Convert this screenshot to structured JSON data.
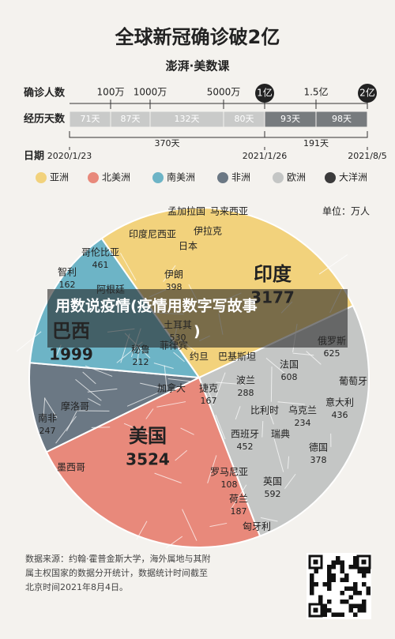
{
  "header": {
    "title": "全球新冠确诊破2亿",
    "brand": "澎湃·美数课"
  },
  "timeline": {
    "cases_label": "确诊人数",
    "cases_ticks": [
      "100万",
      "1000万",
      "5000万",
      "1亿",
      "1.5亿",
      "2亿"
    ],
    "days_label": "经历天数",
    "segments": [
      "71天",
      "87天",
      "132天",
      "80天",
      "93天",
      "98天"
    ],
    "spans": [
      "370天",
      "191天"
    ],
    "date_label": "日期",
    "dates": [
      "2020/1/23",
      "2021/1/26",
      "2021/8/5"
    ]
  },
  "legend": [
    "亚洲",
    "北美洲",
    "南美洲",
    "非洲",
    "欧洲",
    "大洋洲"
  ],
  "unit": "单位：万人",
  "countries": [
    {
      "name": "印度",
      "value": "3177"
    },
    {
      "name": "巴西",
      "value": "1999"
    },
    {
      "name": "美国",
      "value": "3524"
    },
    {
      "name": "孟加拉国"
    },
    {
      "name": "马来西亚"
    },
    {
      "name": "印度尼西亚"
    },
    {
      "name": "伊拉克"
    },
    {
      "name": "日本"
    },
    {
      "name": "哥伦比亚",
      "value": "461"
    },
    {
      "name": "智利",
      "value": "162"
    },
    {
      "name": "阿根廷"
    },
    {
      "name": "伊朗",
      "value": "398"
    },
    {
      "name": "土耳其",
      "value": "530"
    },
    {
      "name": "秘鲁",
      "value": "212"
    },
    {
      "name": "菲律宾"
    },
    {
      "name": "巴基斯坦"
    },
    {
      "name": "约旦"
    },
    {
      "name": "加拿大"
    },
    {
      "name": "捷克",
      "value": "167"
    },
    {
      "name": "波兰",
      "value": "288"
    },
    {
      "name": "法国",
      "value": "608"
    },
    {
      "name": "俄罗斯",
      "value": "625"
    },
    {
      "name": "葡萄牙"
    },
    {
      "name": "意大利",
      "value": "436"
    },
    {
      "name": "比利时"
    },
    {
      "name": "乌克兰",
      "value": "234"
    },
    {
      "name": "摩洛哥"
    },
    {
      "name": "南非",
      "value": "247"
    },
    {
      "name": "西班牙",
      "value": "452"
    },
    {
      "name": "瑞典"
    },
    {
      "name": "德国",
      "value": "378"
    },
    {
      "name": "墨西哥"
    },
    {
      "name": "罗马尼亚",
      "value": "108"
    },
    {
      "name": "英国",
      "value": "592"
    },
    {
      "name": "荷兰",
      "value": "187"
    },
    {
      "name": "匈牙利"
    }
  ],
  "overlay": [
    "用数说疫情(疫情用数字写故事",
    ")"
  ],
  "footer": [
    "数据来源：约翰·霍普金斯大学，海外属地与其附",
    "属主权国家的数据分开统计，数据统计时间截至",
    "北京时间2021年8月4日。"
  ]
}
